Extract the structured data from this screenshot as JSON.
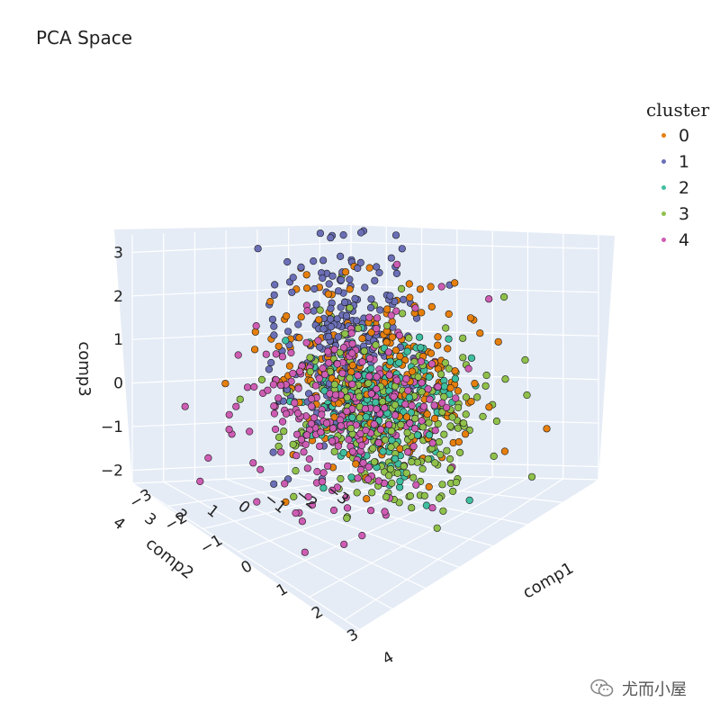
{
  "title": "PCA Space",
  "legend": {
    "title": "cluster",
    "items": [
      {
        "label": "0",
        "color": "#e67f0d"
      },
      {
        "label": "1",
        "color": "#6b6fb7"
      },
      {
        "label": "2",
        "color": "#3fbf9f"
      },
      {
        "label": "3",
        "color": "#8fc14b"
      },
      {
        "label": "4",
        "color": "#cd5cb3"
      }
    ]
  },
  "watermark": "尤而小屋",
  "chart_data": {
    "type": "scatter",
    "title": "PCA Space",
    "dimensions": 3,
    "xlabel": "comp1",
    "ylabel": "comp2",
    "zlabel": "comp3",
    "xlim": [
      -3,
      4
    ],
    "ylim": [
      -3,
      4
    ],
    "zlim": [
      -2.3,
      3.4
    ],
    "x_ticks": [
      "−3",
      "−2",
      "−1",
      "0",
      "1",
      "2",
      "3",
      "4"
    ],
    "y_ticks": [
      "−3",
      "−2",
      "−1",
      "0",
      "1",
      "2",
      "3",
      "4"
    ],
    "z_ticks": [
      "−2",
      "−1",
      "0",
      "1",
      "2",
      "3"
    ],
    "grid": true,
    "legend_title": "cluster",
    "legend_position": "top-right",
    "series": [
      {
        "name": "0",
        "color": "#e67f0d",
        "center": [
          -0.5,
          -1.0,
          0.3
        ],
        "spread": [
          1.4,
          0.9,
          1.3
        ]
      },
      {
        "name": "1",
        "color": "#6b6fb7",
        "center": [
          -1.8,
          -1.3,
          0.8
        ],
        "spread": [
          0.8,
          0.8,
          1.5
        ]
      },
      {
        "name": "2",
        "color": "#3fbf9f",
        "center": [
          -0.3,
          -0.8,
          -0.2
        ],
        "spread": [
          0.8,
          0.6,
          0.9
        ]
      },
      {
        "name": "3",
        "color": "#8fc14b",
        "center": [
          0.4,
          -0.6,
          -0.5
        ],
        "spread": [
          1.2,
          0.9,
          1.4
        ]
      },
      {
        "name": "4",
        "color": "#cd5cb3",
        "center": [
          0.5,
          1.1,
          0.4
        ],
        "spread": [
          1.0,
          1.3,
          1.3
        ]
      }
    ]
  }
}
